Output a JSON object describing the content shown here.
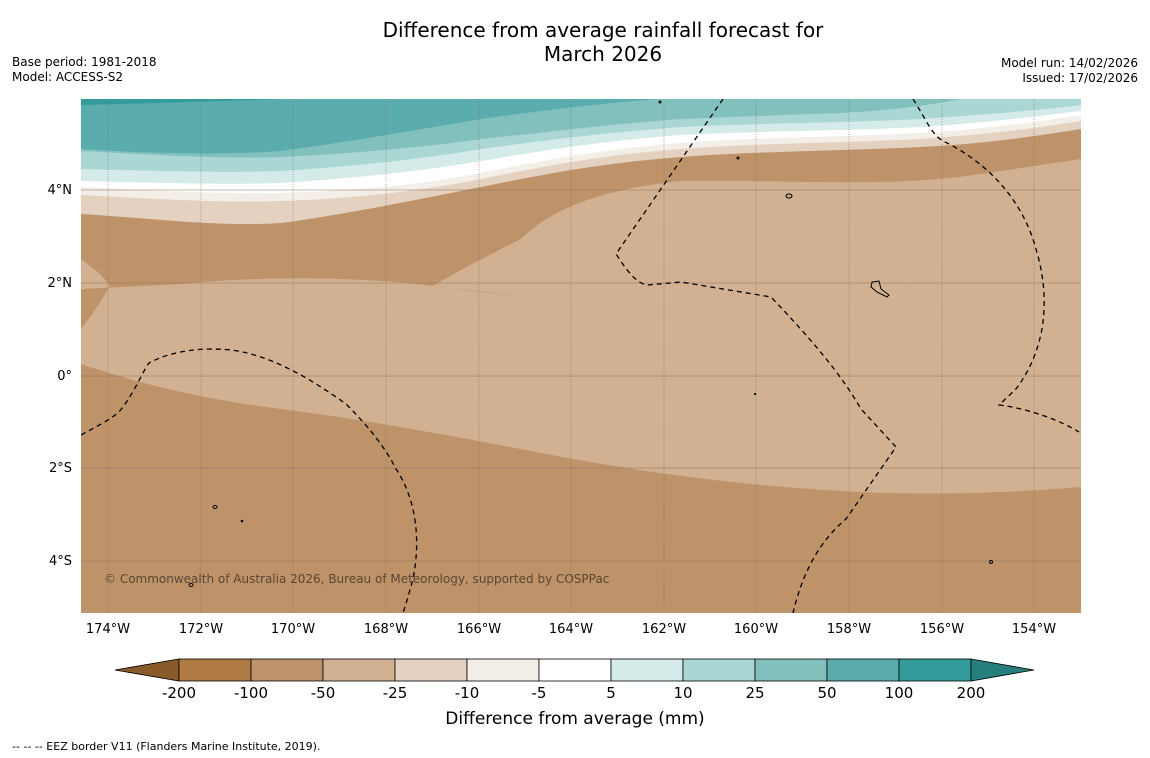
{
  "header": {
    "title_line1": "Difference from average rainfall forecast for",
    "title_line2": "March 2026",
    "base_period": "Base period: 1981-2018",
    "model": "Model: ACCESS-S2",
    "model_run": "Model run: 14/02/2026",
    "issued": "Issued: 17/02/2026"
  },
  "map": {
    "lat_labels": [
      "4°N",
      "2°N",
      "0°",
      "2°S",
      "4°S"
    ],
    "lon_labels": [
      "174°W",
      "172°W",
      "170°W",
      "168°W",
      "166°W",
      "164°W",
      "162°W",
      "160°W",
      "158°W",
      "156°W",
      "154°W"
    ],
    "copyright": "© Commonwealth of Australia 2026, Bureau of Meteorology, supported by COSPPac"
  },
  "legend": {
    "ticks": [
      "-200",
      "-100",
      "-50",
      "-25",
      "-10",
      "-5",
      "5",
      "10",
      "25",
      "50",
      "100",
      "200"
    ],
    "colors": [
      "#8a5a2b",
      "#b07a44",
      "#bf936a",
      "#d1b192",
      "#e4d1c0",
      "#f4eee8",
      "#ffffff",
      "#d5ebe9",
      "#aad6d4",
      "#82c0be",
      "#5aacad",
      "#339b9a",
      "#267e7d"
    ],
    "label": "Difference from average (mm)"
  },
  "footnote": "--  --  -- EEZ border V11 (Flanders Marine Institute, 2019)."
}
